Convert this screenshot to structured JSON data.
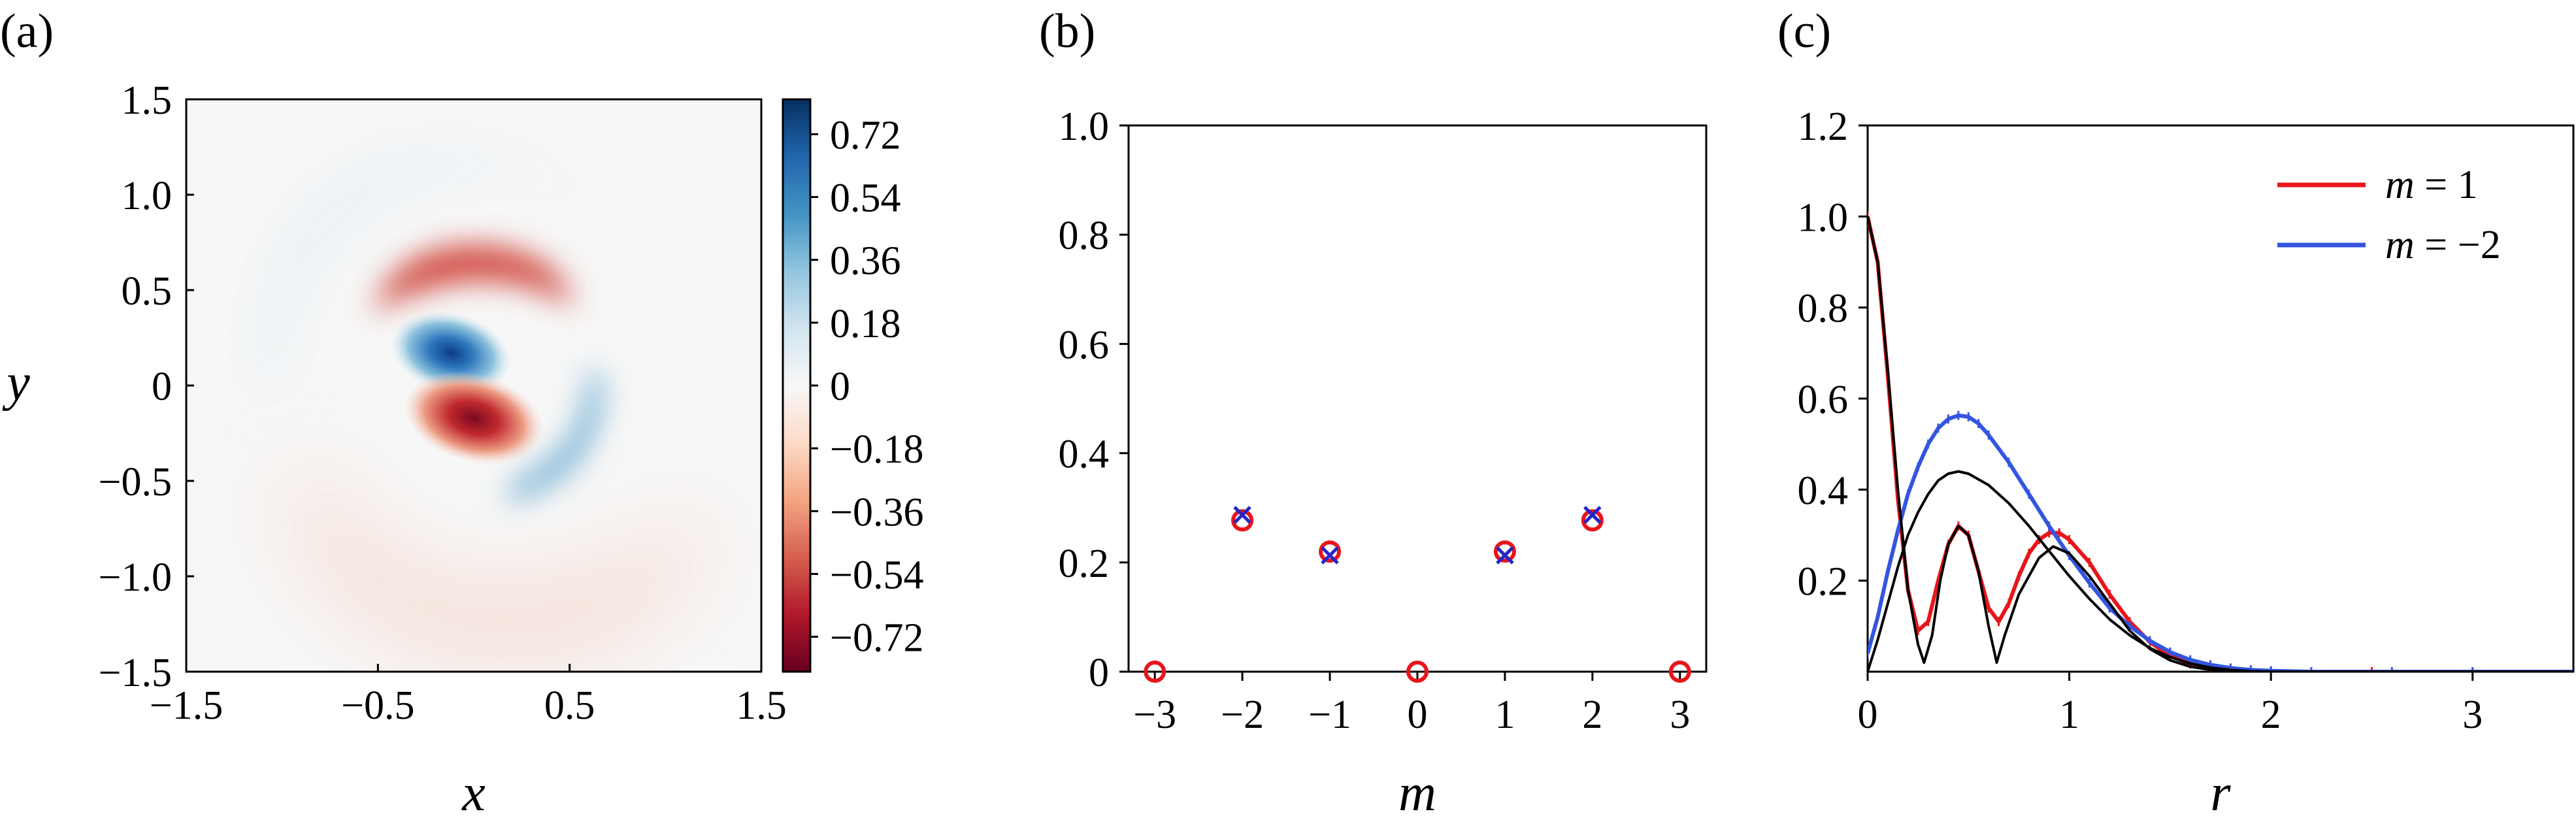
{
  "chart_data": [
    {
      "type": "heatmap",
      "panel_label": "(a)",
      "xlabel": "x",
      "ylabel": "y",
      "xlim": [
        -1.5,
        1.5
      ],
      "ylim": [
        -1.5,
        1.5
      ],
      "xticks": [
        "−1.5",
        "−0.5",
        "0.5",
        "1.5"
      ],
      "yticks": [
        "1.5",
        "1.0",
        "0.5",
        "0",
        "−0.5",
        "−1.0",
        "−1.5"
      ],
      "colorbar_ticks": [
        "0.72",
        "0.54",
        "0.36",
        "0.18",
        "0",
        "−0.18",
        "−0.36",
        "−0.54",
        "−0.72"
      ],
      "colorbar_range": [
        -0.82,
        0.82
      ],
      "colormap": [
        "#67001f",
        "#b2182b",
        "#d6604d",
        "#f4a582",
        "#fddbc7",
        "#f7f7f7",
        "#d1e5f0",
        "#92c5de",
        "#4393c3",
        "#2166ac",
        "#053061"
      ],
      "features": [
        {
          "kind": "lobe",
          "sign": "positive",
          "center": [
            -0.05,
            0.12
          ],
          "peak": 0.78
        },
        {
          "kind": "lobe",
          "sign": "negative",
          "center": [
            0.05,
            -0.12
          ],
          "peak": -0.82
        },
        {
          "kind": "arc",
          "sign": "negative",
          "center": [
            0.1,
            0.5
          ],
          "peak": -0.5
        },
        {
          "kind": "arc",
          "sign": "positive",
          "center": [
            0.4,
            -0.4
          ],
          "peak": 0.3
        },
        {
          "kind": "arc",
          "sign": "negative",
          "center": [
            -0.2,
            -0.85
          ],
          "peak": -0.12
        }
      ]
    },
    {
      "type": "scatter",
      "panel_label": "(b)",
      "xlabel": "m",
      "ylabel": "",
      "xlim": [
        -3.3,
        3.3
      ],
      "ylim": [
        0,
        1.0
      ],
      "xticks": [
        "−3",
        "−2",
        "−1",
        "0",
        "1",
        "2",
        "3"
      ],
      "yticks": [
        "0",
        "0.2",
        "0.4",
        "0.6",
        "0.8",
        "1.0"
      ],
      "series": [
        {
          "marker": "circle",
          "color": "#e8151b",
          "x": [
            -3,
            -2,
            -1,
            0,
            1,
            2,
            3
          ],
          "y": [
            0,
            0.277,
            0.22,
            0,
            0.22,
            0.277,
            0
          ]
        },
        {
          "marker": "cross",
          "color": "#2525c8",
          "x": [
            -2,
            -1,
            1,
            2
          ],
          "y": [
            0.287,
            0.213,
            0.213,
            0.287
          ]
        }
      ]
    },
    {
      "type": "line",
      "panel_label": "(c)",
      "xlabel": "r",
      "ylabel": "",
      "xlim": [
        0,
        3.5
      ],
      "ylim": [
        0,
        1.2
      ],
      "xticks": [
        "0",
        "1",
        "2",
        "3"
      ],
      "yticks": [
        "0.2",
        "0.4",
        "0.6",
        "0.8",
        "1.0",
        "1.2"
      ],
      "legend_position": "top-right",
      "legend": [
        {
          "label_pre": "m",
          "label_post": " = 1",
          "color": "#e8151b"
        },
        {
          "label_pre": "m",
          "label_post": " = −2",
          "color": "#3355e0"
        }
      ],
      "series": [
        {
          "label": "m = 1",
          "color": "#e8151b",
          "points": [
            [
              0,
              1.0
            ],
            [
              0.05,
              0.9
            ],
            [
              0.1,
              0.65
            ],
            [
              0.15,
              0.38
            ],
            [
              0.2,
              0.18
            ],
            [
              0.25,
              0.09
            ],
            [
              0.3,
              0.11
            ],
            [
              0.35,
              0.2
            ],
            [
              0.4,
              0.28
            ],
            [
              0.45,
              0.32
            ],
            [
              0.5,
              0.3
            ],
            [
              0.55,
              0.22
            ],
            [
              0.6,
              0.14
            ],
            [
              0.65,
              0.11
            ],
            [
              0.7,
              0.15
            ],
            [
              0.75,
              0.21
            ],
            [
              0.8,
              0.26
            ],
            [
              0.85,
              0.29
            ],
            [
              0.9,
              0.305
            ],
            [
              0.95,
              0.305
            ],
            [
              1.0,
              0.29
            ],
            [
              1.1,
              0.24
            ],
            [
              1.2,
              0.17
            ],
            [
              1.3,
              0.11
            ],
            [
              1.4,
              0.065
            ],
            [
              1.5,
              0.035
            ],
            [
              1.6,
              0.017
            ],
            [
              1.7,
              0.008
            ],
            [
              1.8,
              0.003
            ],
            [
              2.0,
              0.0
            ],
            [
              2.5,
              0.0
            ],
            [
              3.0,
              0.0
            ],
            [
              3.5,
              0.0
            ]
          ]
        },
        {
          "label": "m = −2",
          "color": "#3355e0",
          "points": [
            [
              0,
              0.04
            ],
            [
              0.05,
              0.12
            ],
            [
              0.1,
              0.22
            ],
            [
              0.15,
              0.31
            ],
            [
              0.2,
              0.39
            ],
            [
              0.25,
              0.45
            ],
            [
              0.3,
              0.5
            ],
            [
              0.35,
              0.535
            ],
            [
              0.4,
              0.555
            ],
            [
              0.45,
              0.563
            ],
            [
              0.5,
              0.56
            ],
            [
              0.55,
              0.545
            ],
            [
              0.6,
              0.52
            ],
            [
              0.7,
              0.46
            ],
            [
              0.8,
              0.39
            ],
            [
              0.9,
              0.32
            ],
            [
              1.0,
              0.255
            ],
            [
              1.1,
              0.195
            ],
            [
              1.2,
              0.14
            ],
            [
              1.3,
              0.1
            ],
            [
              1.4,
              0.068
            ],
            [
              1.5,
              0.043
            ],
            [
              1.6,
              0.026
            ],
            [
              1.7,
              0.015
            ],
            [
              1.8,
              0.008
            ],
            [
              1.9,
              0.004
            ],
            [
              2.0,
              0.002
            ],
            [
              2.2,
              0.0
            ],
            [
              2.6,
              0.0
            ],
            [
              3.0,
              0.0
            ],
            [
              3.5,
              0.0
            ]
          ]
        },
        {
          "label": "",
          "color": "#000000",
          "points": [
            [
              0,
              1.0
            ],
            [
              0.05,
              0.9
            ],
            [
              0.1,
              0.66
            ],
            [
              0.15,
              0.4
            ],
            [
              0.2,
              0.18
            ],
            [
              0.25,
              0.06
            ],
            [
              0.28,
              0.02
            ],
            [
              0.32,
              0.08
            ],
            [
              0.36,
              0.2
            ],
            [
              0.4,
              0.28
            ],
            [
              0.45,
              0.32
            ],
            [
              0.5,
              0.3
            ],
            [
              0.55,
              0.22
            ],
            [
              0.6,
              0.1
            ],
            [
              0.64,
              0.02
            ],
            [
              0.68,
              0.08
            ],
            [
              0.75,
              0.17
            ],
            [
              0.85,
              0.25
            ],
            [
              0.92,
              0.275
            ],
            [
              1.0,
              0.26
            ],
            [
              1.1,
              0.21
            ],
            [
              1.2,
              0.15
            ],
            [
              1.3,
              0.09
            ],
            [
              1.4,
              0.05
            ],
            [
              1.5,
              0.025
            ],
            [
              1.6,
              0.011
            ],
            [
              1.7,
              0.004
            ],
            [
              1.8,
              0.0
            ],
            [
              3.5,
              0.0
            ]
          ]
        },
        {
          "label": "",
          "color": "#000000",
          "points": [
            [
              0,
              0.0
            ],
            [
              0.05,
              0.07
            ],
            [
              0.1,
              0.15
            ],
            [
              0.15,
              0.23
            ],
            [
              0.2,
              0.3
            ],
            [
              0.25,
              0.35
            ],
            [
              0.3,
              0.39
            ],
            [
              0.35,
              0.42
            ],
            [
              0.4,
              0.435
            ],
            [
              0.45,
              0.44
            ],
            [
              0.5,
              0.435
            ],
            [
              0.6,
              0.41
            ],
            [
              0.7,
              0.37
            ],
            [
              0.8,
              0.32
            ],
            [
              0.9,
              0.265
            ],
            [
              1.0,
              0.21
            ],
            [
              1.1,
              0.16
            ],
            [
              1.2,
              0.115
            ],
            [
              1.3,
              0.08
            ],
            [
              1.4,
              0.052
            ],
            [
              1.5,
              0.032
            ],
            [
              1.6,
              0.018
            ],
            [
              1.7,
              0.009
            ],
            [
              1.8,
              0.004
            ],
            [
              1.9,
              0.001
            ],
            [
              2.0,
              0.0
            ],
            [
              3.5,
              0.0
            ]
          ]
        }
      ]
    }
  ]
}
